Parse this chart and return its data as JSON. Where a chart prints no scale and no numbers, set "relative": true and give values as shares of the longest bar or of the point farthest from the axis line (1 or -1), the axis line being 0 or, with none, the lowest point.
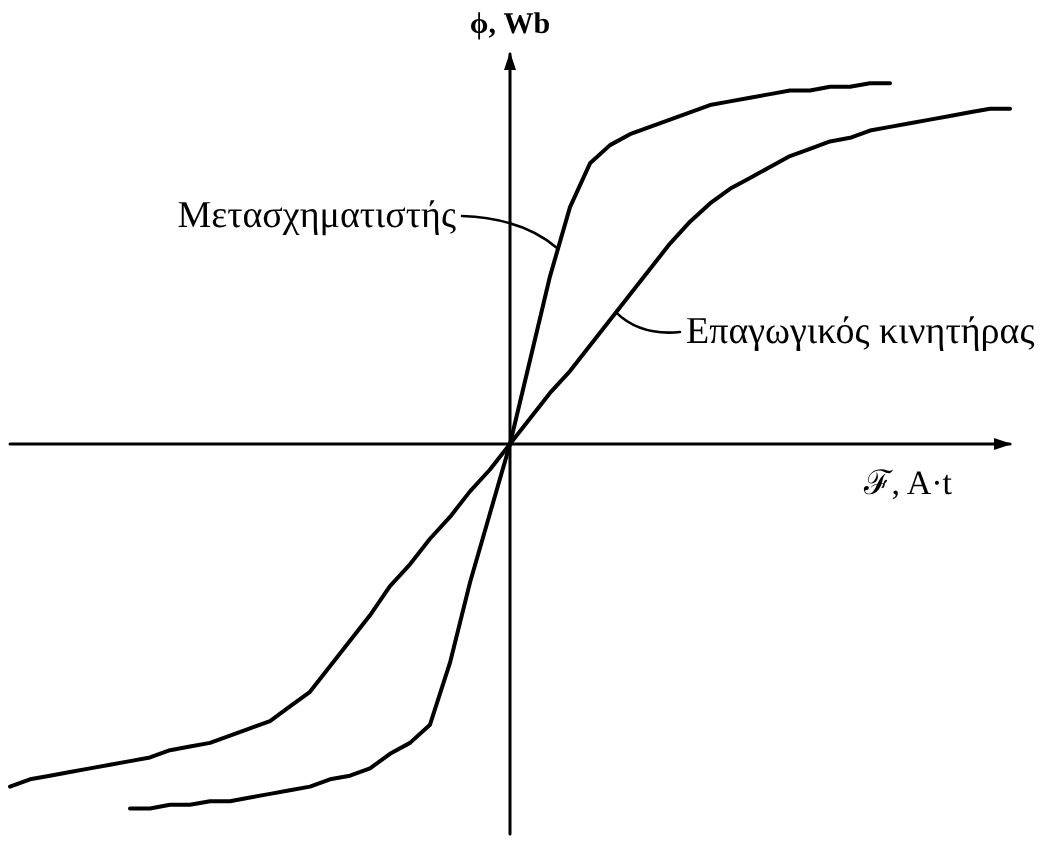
{
  "chart_data": {
    "type": "line",
    "relative": true,
    "xlabel": "ℱ, A·t",
    "ylabel": "ϕ, Wb",
    "categories": [
      null,
      null,
      null,
      null,
      null,
      null,
      null,
      null,
      null,
      null,
      null,
      null,
      null,
      null,
      null,
      null,
      null,
      null,
      null,
      null,
      null,
      null,
      null,
      null,
      null,
      null,
      null,
      null,
      null,
      null,
      null,
      null,
      null,
      null,
      null,
      null,
      null,
      null,
      null,
      null,
      null,
      null,
      null,
      null,
      null,
      null,
      null,
      null,
      null,
      null,
      null
    ],
    "series": [
      {
        "name": "Μετασχηματιστής",
        "color": "#000000",
        "values": [
          null,
          null,
          null,
          null,
          null,
          null,
          -1.0,
          -1.0,
          -0.99,
          -0.99,
          -0.98,
          -0.98,
          -0.97,
          -0.96,
          -0.95,
          -0.94,
          -0.92,
          -0.91,
          -0.89,
          -0.85,
          -0.82,
          -0.77,
          -0.6,
          -0.38,
          -0.19,
          0,
          0.23,
          0.46,
          0.65,
          0.77,
          0.82,
          0.85,
          0.87,
          0.89,
          0.91,
          0.93,
          0.94,
          0.95,
          0.96,
          0.97,
          0.97,
          0.98,
          0.98,
          0.99,
          0.99,
          null,
          null,
          null,
          null,
          null,
          null
        ]
      },
      {
        "name": "Επαγωγικός κινητήρας",
        "color": "#000000",
        "values": [
          -0.94,
          -0.92,
          -0.91,
          -0.9,
          -0.89,
          -0.88,
          -0.87,
          -0.86,
          -0.84,
          -0.83,
          -0.82,
          -0.8,
          -0.78,
          -0.76,
          -0.72,
          -0.68,
          -0.61,
          -0.54,
          -0.47,
          -0.39,
          -0.33,
          -0.26,
          -0.2,
          -0.13,
          -0.07,
          0,
          0.07,
          0.14,
          0.2,
          0.27,
          0.34,
          0.41,
          0.48,
          0.55,
          0.61,
          0.66,
          0.7,
          0.73,
          0.76,
          0.79,
          0.81,
          0.83,
          0.84,
          0.86,
          0.87,
          0.88,
          0.89,
          0.9,
          0.91,
          0.92,
          0.92
        ]
      }
    ]
  }
}
